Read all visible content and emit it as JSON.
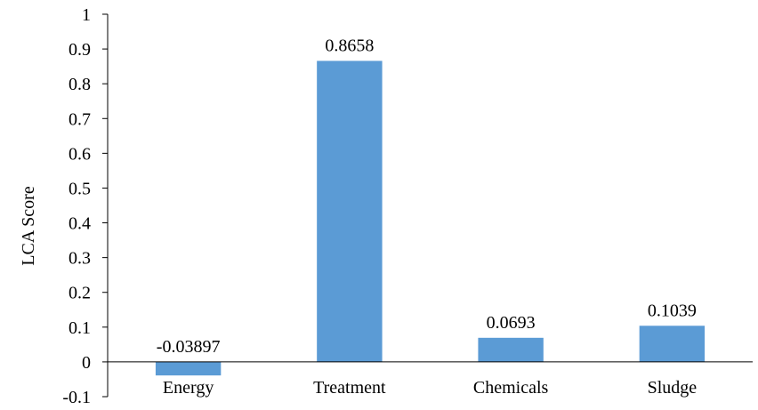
{
  "chart_data": {
    "type": "bar",
    "title": "",
    "xlabel": "",
    "ylabel": "LCA Score",
    "categories": [
      "Energy",
      "Treatment",
      "Chemicals",
      "Sludge"
    ],
    "values": [
      -0.03897,
      0.8658,
      0.0693,
      0.1039
    ],
    "data_labels": [
      "-0.03897",
      "0.8658",
      "0.0693",
      "0.1039"
    ],
    "ylim": [
      -0.1,
      1
    ],
    "yticks": [
      "-0.1",
      "0",
      "0.1",
      "0.2",
      "0.3",
      "0.4",
      "0.5",
      "0.6",
      "0.7",
      "0.8",
      "0.9",
      "1"
    ],
    "ytick_values": [
      -0.1,
      0,
      0.1,
      0.2,
      0.3,
      0.4,
      0.5,
      0.6,
      0.7,
      0.8,
      0.9,
      1
    ],
    "grid": false,
    "legend": "none",
    "bar_color": "#5B9BD5"
  }
}
